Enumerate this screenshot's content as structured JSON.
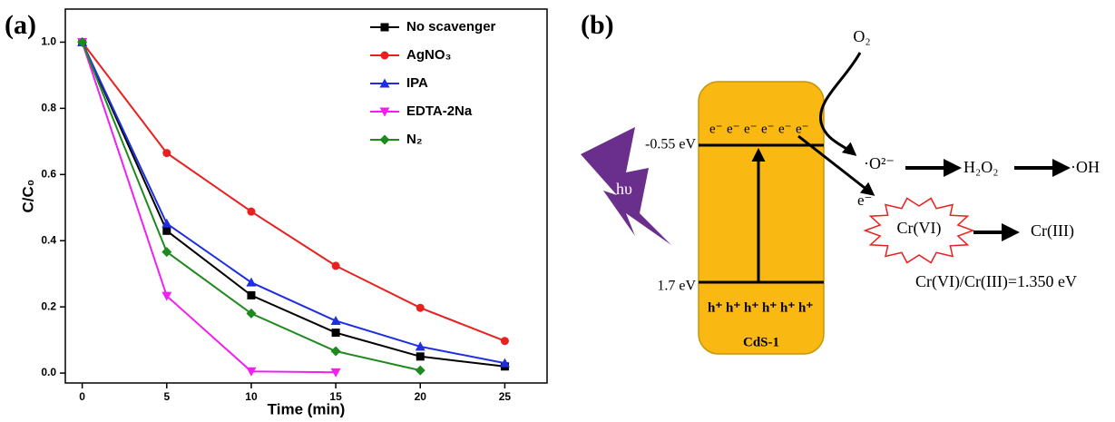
{
  "chart_data": {
    "type": "line",
    "panel_label": "(a)",
    "xlabel": "Time (min)",
    "ylabel": "C/C₀",
    "x": [
      0,
      5,
      10,
      15,
      20,
      25
    ],
    "series": [
      {
        "name": "No scavenger",
        "color": "#000000",
        "marker": "square",
        "values": [
          1.0,
          0.43,
          0.235,
          0.122,
          0.05,
          0.02
        ]
      },
      {
        "name": "AgNO₃",
        "color": "#e8201e",
        "marker": "circle",
        "values": [
          1.0,
          0.665,
          0.488,
          0.324,
          0.197,
          0.097
        ]
      },
      {
        "name": "IPA",
        "color": "#1f2fe0",
        "marker": "triangle-up",
        "values": [
          1.0,
          0.452,
          0.274,
          0.158,
          0.08,
          0.03
        ]
      },
      {
        "name": "EDTA-2Na",
        "color": "#f020f0",
        "marker": "triangle-down",
        "values": [
          1.0,
          0.233,
          0.005,
          0.002,
          null,
          null
        ]
      },
      {
        "name": "N₂",
        "color": "#1e8a1e",
        "marker": "diamond",
        "values": [
          1.0,
          0.366,
          0.18,
          0.066,
          0.008,
          null
        ]
      }
    ],
    "xlim": [
      -1,
      27.5
    ],
    "xticks": [
      0,
      5,
      10,
      15,
      20,
      25
    ],
    "ylim": [
      -0.03,
      1.1
    ],
    "yticks": [
      {
        "value": 0,
        "label": "0.0"
      },
      0.2,
      0.4,
      0.6,
      0.8,
      {
        "value": 1,
        "label": "1.0"
      }
    ],
    "grid": false,
    "legend": "upper-right"
  },
  "diagram": {
    "panel_label": "(b)",
    "oxygen": "O₂",
    "cb_level": "-0.55 eV",
    "vb_level": "1.7 eV",
    "light": "hυ",
    "electrons": [
      "e⁻",
      "e⁻",
      "e⁻",
      "e⁻",
      "e⁻",
      "e⁻"
    ],
    "holes": [
      "h⁺",
      "h⁺",
      "h⁺",
      "h⁺",
      "h⁺",
      "h⁺"
    ],
    "material": "CdS-1",
    "superoxide": "·O²⁻",
    "peroxide": "H₂O₂",
    "hydroxyl": "·OH",
    "transfer_electron": "e⁻",
    "cr6": "Cr(VI)",
    "cr3": "Cr(III)",
    "potential": "Cr(VI)/Cr(III)=1.350 eV"
  }
}
